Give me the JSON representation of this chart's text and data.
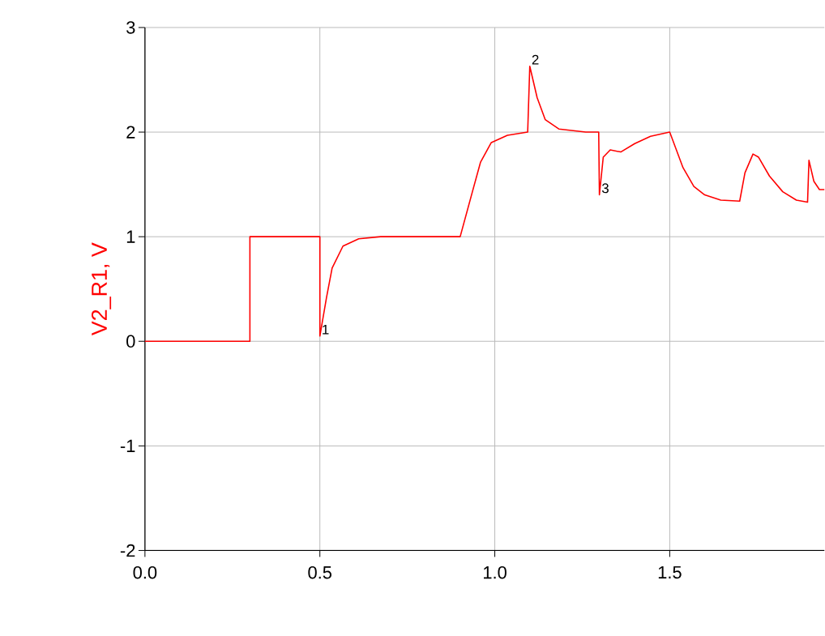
{
  "chart_data": {
    "type": "line",
    "ylabel": "V2_R1, V",
    "x": [
      0,
      0.3,
      0.3,
      0.5,
      0.5,
      0.519,
      0.535,
      0.566,
      0.611,
      0.674,
      0.901,
      0.936,
      0.959,
      0.99,
      1.036,
      1.094,
      1.1,
      1.121,
      1.144,
      1.183,
      1.26,
      1.297,
      1.299,
      1.31,
      1.33,
      1.36,
      1.4,
      1.445,
      1.5,
      1.538,
      1.569,
      1.6,
      1.646,
      1.7,
      1.715,
      1.738,
      1.754,
      1.785,
      1.823,
      1.862,
      1.894,
      1.898,
      1.912,
      1.928,
      1.942
    ],
    "series": [
      {
        "color": "#ff0000",
        "values": [
          0,
          0,
          1,
          1,
          0.05,
          0.42,
          0.7,
          0.91,
          0.98,
          1.0,
          1.0,
          1.43,
          1.71,
          1.9,
          1.97,
          2.0,
          2.63,
          2.33,
          2.12,
          2.03,
          2.0,
          2.0,
          1.4,
          1.76,
          1.83,
          1.81,
          1.89,
          1.96,
          2.0,
          1.66,
          1.48,
          1.4,
          1.35,
          1.34,
          1.61,
          1.79,
          1.76,
          1.58,
          1.43,
          1.35,
          1.33,
          1.73,
          1.53,
          1.45,
          1.45
        ]
      }
    ],
    "xlim": [
      0,
      1.942
    ],
    "ylim": [
      -2,
      3
    ],
    "xticks": [
      {
        "value": 0,
        "label": "0.0"
      },
      {
        "value": 0.5,
        "label": "0.5"
      },
      {
        "value": 1,
        "label": "1.0"
      },
      {
        "value": 1.5,
        "label": "1.5"
      }
    ],
    "yticks": [
      -2,
      -1,
      0,
      1,
      2,
      3
    ],
    "grid": true,
    "annotations": [
      {
        "text": "1",
        "x": 0.5,
        "y": 0.05
      },
      {
        "text": "2",
        "x": 1.1,
        "y": 2.63
      },
      {
        "text": "3",
        "x": 1.3,
        "y": 1.4
      }
    ]
  }
}
